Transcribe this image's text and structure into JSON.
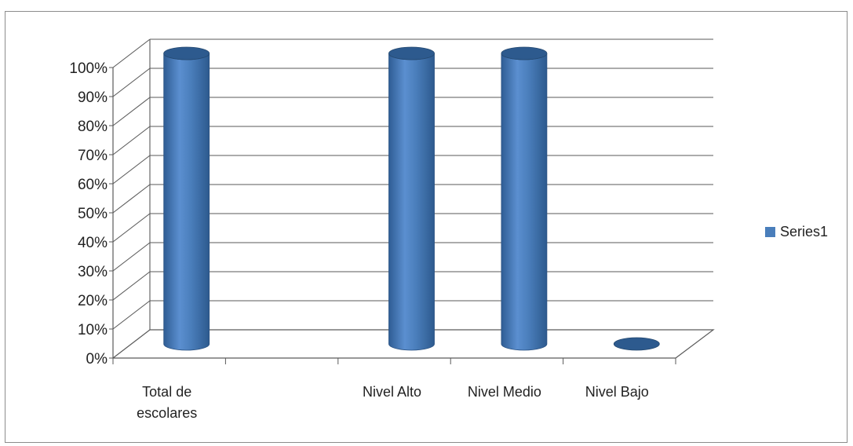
{
  "chart_data": {
    "type": "bar",
    "style": "3d-cylinder",
    "categories": [
      "Total de escolares",
      "",
      "Nivel Alto",
      "Nivel Medio",
      "Nivel Bajo"
    ],
    "category_lines": [
      [
        "Total de",
        "escolares"
      ],
      [
        ""
      ],
      [
        "Nivel Alto"
      ],
      [
        "Nivel Medio"
      ],
      [
        "Nivel Bajo"
      ]
    ],
    "series": [
      {
        "name": "Series1",
        "values": [
          100,
          0,
          100,
          100,
          0
        ]
      }
    ],
    "ylim": [
      0,
      100
    ],
    "yticks": [
      0,
      10,
      20,
      30,
      40,
      50,
      60,
      70,
      80,
      90,
      100
    ],
    "ytick_labels": [
      "0%",
      "10%",
      "20%",
      "30%",
      "40%",
      "50%",
      "60%",
      "70%",
      "80%",
      "90%",
      "100%"
    ],
    "title": "",
    "xlabel": "",
    "ylabel": "",
    "grid": true,
    "legend": {
      "position": "right",
      "entries": [
        "Series1"
      ]
    },
    "colors": {
      "series": "#4a7ebb",
      "series_dark": "#2d5a8e",
      "series_light": "#6d9bd6",
      "grid": "#5a5a5a"
    }
  }
}
